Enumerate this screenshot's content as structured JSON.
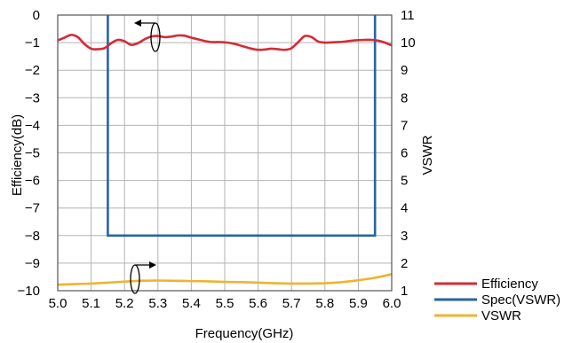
{
  "chart_data": {
    "type": "line",
    "xlabel": "Frequency(GHz)",
    "ylabel_left": "Efficiency(dB)",
    "ylabel_right": "VSWR",
    "xlim": [
      5.0,
      6.0
    ],
    "ylim_left": [
      -10,
      0
    ],
    "ylim_right": [
      1,
      11
    ],
    "x_ticks": [
      "5.0",
      "5.1",
      "5.2",
      "5.3",
      "5.4",
      "5.5",
      "5.6",
      "5.7",
      "5.8",
      "5.9",
      "6.0"
    ],
    "y_left_ticks": [
      "0",
      "−1",
      "−2",
      "−3",
      "−4",
      "−5",
      "−6",
      "−7",
      "−8",
      "−9",
      "−10"
    ],
    "y_right_ticks": [
      "11",
      "10",
      "9",
      "8",
      "7",
      "6",
      "5",
      "4",
      "3",
      "2",
      "1"
    ],
    "grid": true,
    "legend_position": "bottom-right",
    "colors": {
      "efficiency": "#d42b36",
      "spec": "#2a63a5",
      "vswr": "#eeb331",
      "grid": "#b3b3b3",
      "frame": "#555555"
    },
    "series": [
      {
        "name": "Efficiency",
        "axis": "left",
        "color": "#d42b36",
        "x": [
          5.0,
          5.02,
          5.04,
          5.06,
          5.08,
          5.1,
          5.12,
          5.14,
          5.16,
          5.18,
          5.2,
          5.22,
          5.24,
          5.26,
          5.28,
          5.3,
          5.32,
          5.34,
          5.36,
          5.38,
          5.4,
          5.42,
          5.44,
          5.46,
          5.48,
          5.5,
          5.52,
          5.54,
          5.56,
          5.58,
          5.6,
          5.62,
          5.64,
          5.66,
          5.68,
          5.7,
          5.72,
          5.74,
          5.76,
          5.78,
          5.8,
          5.82,
          5.84,
          5.86,
          5.88,
          5.9,
          5.92,
          5.94,
          5.96,
          5.98,
          6.0
        ],
        "y": [
          -0.92,
          -0.82,
          -0.72,
          -0.8,
          -1.05,
          -1.22,
          -1.24,
          -1.2,
          -1.02,
          -0.9,
          -0.95,
          -1.08,
          -1.02,
          -0.88,
          -0.78,
          -0.76,
          -0.8,
          -0.78,
          -0.74,
          -0.75,
          -0.82,
          -0.88,
          -0.94,
          -0.98,
          -0.98,
          -0.99,
          -1.02,
          -1.08,
          -1.15,
          -1.22,
          -1.26,
          -1.25,
          -1.22,
          -1.24,
          -1.26,
          -1.2,
          -0.98,
          -0.76,
          -0.8,
          -0.96,
          -1.0,
          -0.99,
          -0.98,
          -0.96,
          -0.93,
          -0.91,
          -0.9,
          -0.9,
          -0.93,
          -1.0,
          -1.1
        ]
      },
      {
        "name": "Spec(VSWR)",
        "axis": "right",
        "color": "#2a63a5",
        "x": [
          5.15,
          5.15,
          5.95,
          5.95
        ],
        "y": [
          11,
          3,
          3,
          11
        ]
      },
      {
        "name": "VSWR",
        "axis": "right",
        "color": "#eeb331",
        "x": [
          5.0,
          5.05,
          5.1,
          5.15,
          5.2,
          5.25,
          5.3,
          5.35,
          5.4,
          5.45,
          5.5,
          5.55,
          5.6,
          5.65,
          5.7,
          5.75,
          5.8,
          5.85,
          5.9,
          5.95,
          6.0
        ],
        "y": [
          1.22,
          1.24,
          1.26,
          1.29,
          1.33,
          1.36,
          1.37,
          1.36,
          1.35,
          1.34,
          1.32,
          1.31,
          1.29,
          1.27,
          1.26,
          1.26,
          1.27,
          1.31,
          1.38,
          1.47,
          1.6
        ]
      }
    ],
    "legend": [
      {
        "label": "Efficiency",
        "color": "#d42b36"
      },
      {
        "label": "Spec(VSWR)",
        "color": "#2a63a5"
      },
      {
        "label": "VSWR",
        "color": "#eeb331"
      }
    ]
  }
}
